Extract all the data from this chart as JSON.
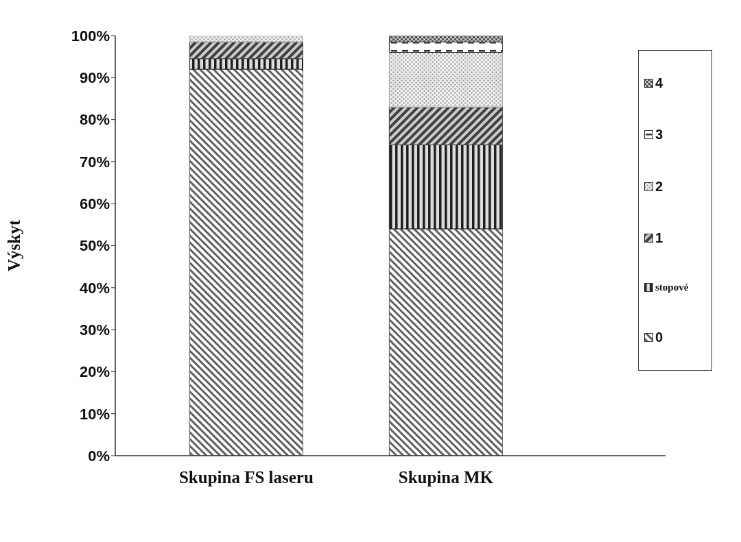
{
  "chart_data": {
    "type": "bar",
    "stacked": true,
    "ylabel": "Výskyt",
    "categories": [
      "Skupina FS laseru",
      "Skupina MK"
    ],
    "series": [
      {
        "name": "0",
        "color": "#606060",
        "values": [
          92,
          54
        ]
      },
      {
        "name": "stopové",
        "color": "#202020",
        "values": [
          2.5,
          20
        ]
      },
      {
        "name": "1",
        "color": "#404040",
        "values": [
          4,
          9
        ]
      },
      {
        "name": "2",
        "color": "#a0a0a0",
        "values": [
          1.5,
          13
        ]
      },
      {
        "name": "3",
        "color": "#303030",
        "values": [
          0,
          2.5
        ]
      },
      {
        "name": "4",
        "color": "#505050",
        "values": [
          0,
          1.5
        ]
      }
    ],
    "ylim": [
      0,
      100
    ],
    "yticks": [
      {
        "value": 0,
        "label": "0%"
      },
      {
        "value": 10,
        "label": "10%"
      },
      {
        "value": 20,
        "label": "20%"
      },
      {
        "value": 30,
        "label": "30%"
      },
      {
        "value": 40,
        "label": "40%"
      },
      {
        "value": 50,
        "label": "50%"
      },
      {
        "value": 60,
        "label": "60%"
      },
      {
        "value": 70,
        "label": "70%"
      },
      {
        "value": 80,
        "label": "80%"
      },
      {
        "value": 90,
        "label": "90%"
      },
      {
        "value": 100,
        "label": "100%"
      }
    ],
    "grid": false,
    "legend": "right"
  }
}
